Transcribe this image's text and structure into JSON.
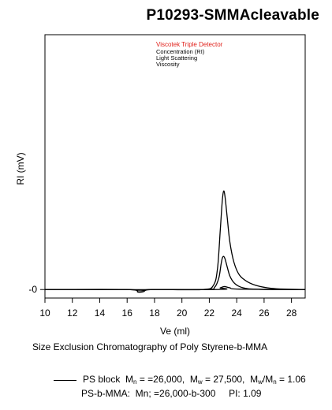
{
  "title": "P10293-SMMAcleavable",
  "caption": "Size Exclusion Chromatography of Poly Styrene-b-MMA",
  "detector_legend": {
    "heading": "Viscotek Triple Detector",
    "heading_color": "#e0201a",
    "items": [
      "Concentration (RI)",
      "Light Scattering",
      "Viscosity"
    ]
  },
  "sample_legend": {
    "line1": {
      "name": "PS block",
      "mn_label": "M",
      "mn_sub": "n",
      "mn_value": "= =26,000,",
      "mw_label": "M",
      "mw_sub": "w",
      "mw_value": "= 27,500,",
      "ratio_a": "M",
      "ratio_a_sub": "w",
      "ratio_sep": "/M",
      "ratio_b_sub": "n",
      "ratio_value": "= 1.06"
    },
    "line2": "PS-b-MMA:  Mn; =26,000-b-300     PI: 1.09"
  },
  "chart_data": {
    "type": "line",
    "title": "P10293-SMMAcleavable",
    "xlabel": "Ve (ml)",
    "ylabel": "RI (mV)",
    "xlim": [
      10,
      29
    ],
    "ylim": [
      -1,
      30
    ],
    "x_ticks": [
      10,
      12,
      14,
      16,
      18,
      20,
      22,
      24,
      26,
      28
    ],
    "y_ticks": [
      0
    ],
    "y_tick_labels": [
      "-0"
    ],
    "grid": false,
    "series": [
      {
        "name": "Concentration (RI)",
        "color": "#000000",
        "x": [
          10,
          16.0,
          16.8,
          17.2,
          17.8,
          21.5,
          22.3,
          22.6,
          22.8,
          22.95,
          23.05,
          23.15,
          23.3,
          23.5,
          23.8,
          24.2,
          24.8,
          25.6,
          26.5,
          27.5,
          29
        ],
        "y": [
          0,
          0,
          -0.3,
          -0.25,
          0,
          0,
          0.5,
          2.5,
          7.0,
          10.5,
          11.6,
          10.9,
          8.6,
          5.6,
          3.2,
          1.7,
          0.9,
          0.4,
          0.15,
          0.05,
          0
        ]
      },
      {
        "name": "Light Scattering",
        "color": "#000000",
        "x": [
          10,
          16.0,
          16.8,
          17.2,
          17.8,
          21.8,
          22.4,
          22.7,
          22.85,
          22.95,
          23.05,
          23.15,
          23.3,
          23.5,
          23.8,
          24.2,
          24.8,
          25.6,
          26.5,
          29
        ],
        "y": [
          0,
          0,
          -0.15,
          -0.12,
          0,
          0,
          0.3,
          1.4,
          2.9,
          3.7,
          3.9,
          3.6,
          2.7,
          1.6,
          0.8,
          0.35,
          0.1,
          0.03,
          0,
          0
        ]
      },
      {
        "name": "Viscosity",
        "color": "#000000",
        "x": [
          10,
          22.2,
          22.8,
          23.1,
          23.5,
          24.2,
          29
        ],
        "y": [
          0,
          0,
          0.2,
          0.35,
          0.2,
          0.05,
          0
        ]
      }
    ]
  }
}
